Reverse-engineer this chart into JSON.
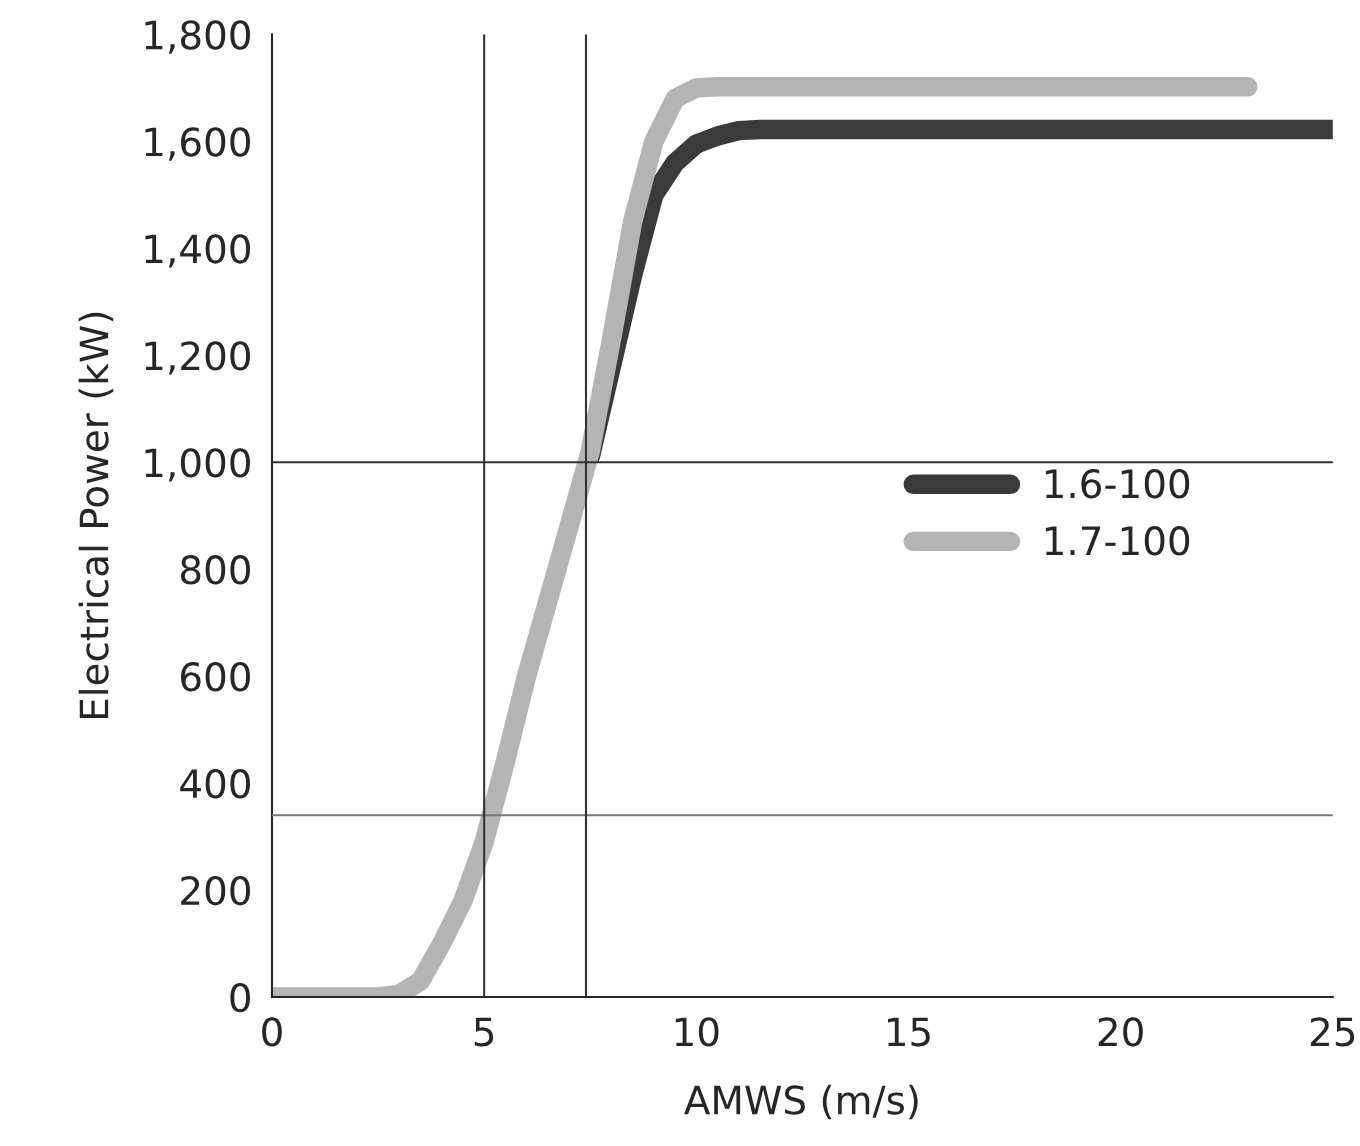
{
  "chart_data": {
    "type": "line",
    "xlabel": "AMWS (m/s)",
    "ylabel": "Electrical Power (kW)",
    "xlim": [
      0,
      25
    ],
    "ylim": [
      0,
      1800
    ],
    "xticks": [
      0,
      5,
      10,
      15,
      20,
      25
    ],
    "yticks": [
      {
        "value": 0,
        "label": "0"
      },
      {
        "value": 200,
        "label": "200"
      },
      {
        "value": 400,
        "label": "400"
      },
      {
        "value": 600,
        "label": "600"
      },
      {
        "value": 800,
        "label": "800"
      },
      {
        "value": 1000,
        "label": "1,000"
      },
      {
        "value": 1200,
        "label": "1,200"
      },
      {
        "value": 1400,
        "label": "1,400"
      },
      {
        "value": 1600,
        "label": "1,600"
      },
      {
        "value": 1800,
        "label": "1,800"
      }
    ],
    "grid": false,
    "legend": "right",
    "marker": "none",
    "line_style": "solid",
    "series": [
      {
        "name": "1.6-100",
        "color": "#3a3a3a",
        "x": [
          7.5,
          8,
          8.5,
          9,
          9.5,
          10,
          10.5,
          11,
          11.5,
          12,
          25
        ],
        "values": [
          1010,
          1180,
          1350,
          1500,
          1560,
          1595,
          1610,
          1620,
          1622,
          1622,
          1622
        ]
      },
      {
        "name": "1.7-100",
        "color": "#b4b4b4",
        "x": [
          0,
          2.5,
          3,
          3.5,
          4,
          4.5,
          5,
          5.5,
          6,
          6.5,
          7,
          7.5,
          8,
          8.5,
          9,
          9.5,
          10,
          10.5,
          11,
          23
        ],
        "values": [
          0,
          0,
          5,
          30,
          100,
          180,
          290,
          440,
          600,
          740,
          880,
          1020,
          1230,
          1450,
          1600,
          1680,
          1700,
          1702,
          1702,
          1702
        ]
      }
    ],
    "ref_lines": [
      {
        "axis": "y",
        "value": 1000,
        "color": "#333333",
        "line_style": "solid"
      },
      {
        "axis": "y",
        "value": 340,
        "color": "#777777",
        "line_style": "solid"
      },
      {
        "axis": "x",
        "value": 5,
        "color": "#333333",
        "line_style": "solid"
      },
      {
        "axis": "x",
        "value": 7.4,
        "color": "#333333",
        "line_style": "solid"
      }
    ]
  }
}
